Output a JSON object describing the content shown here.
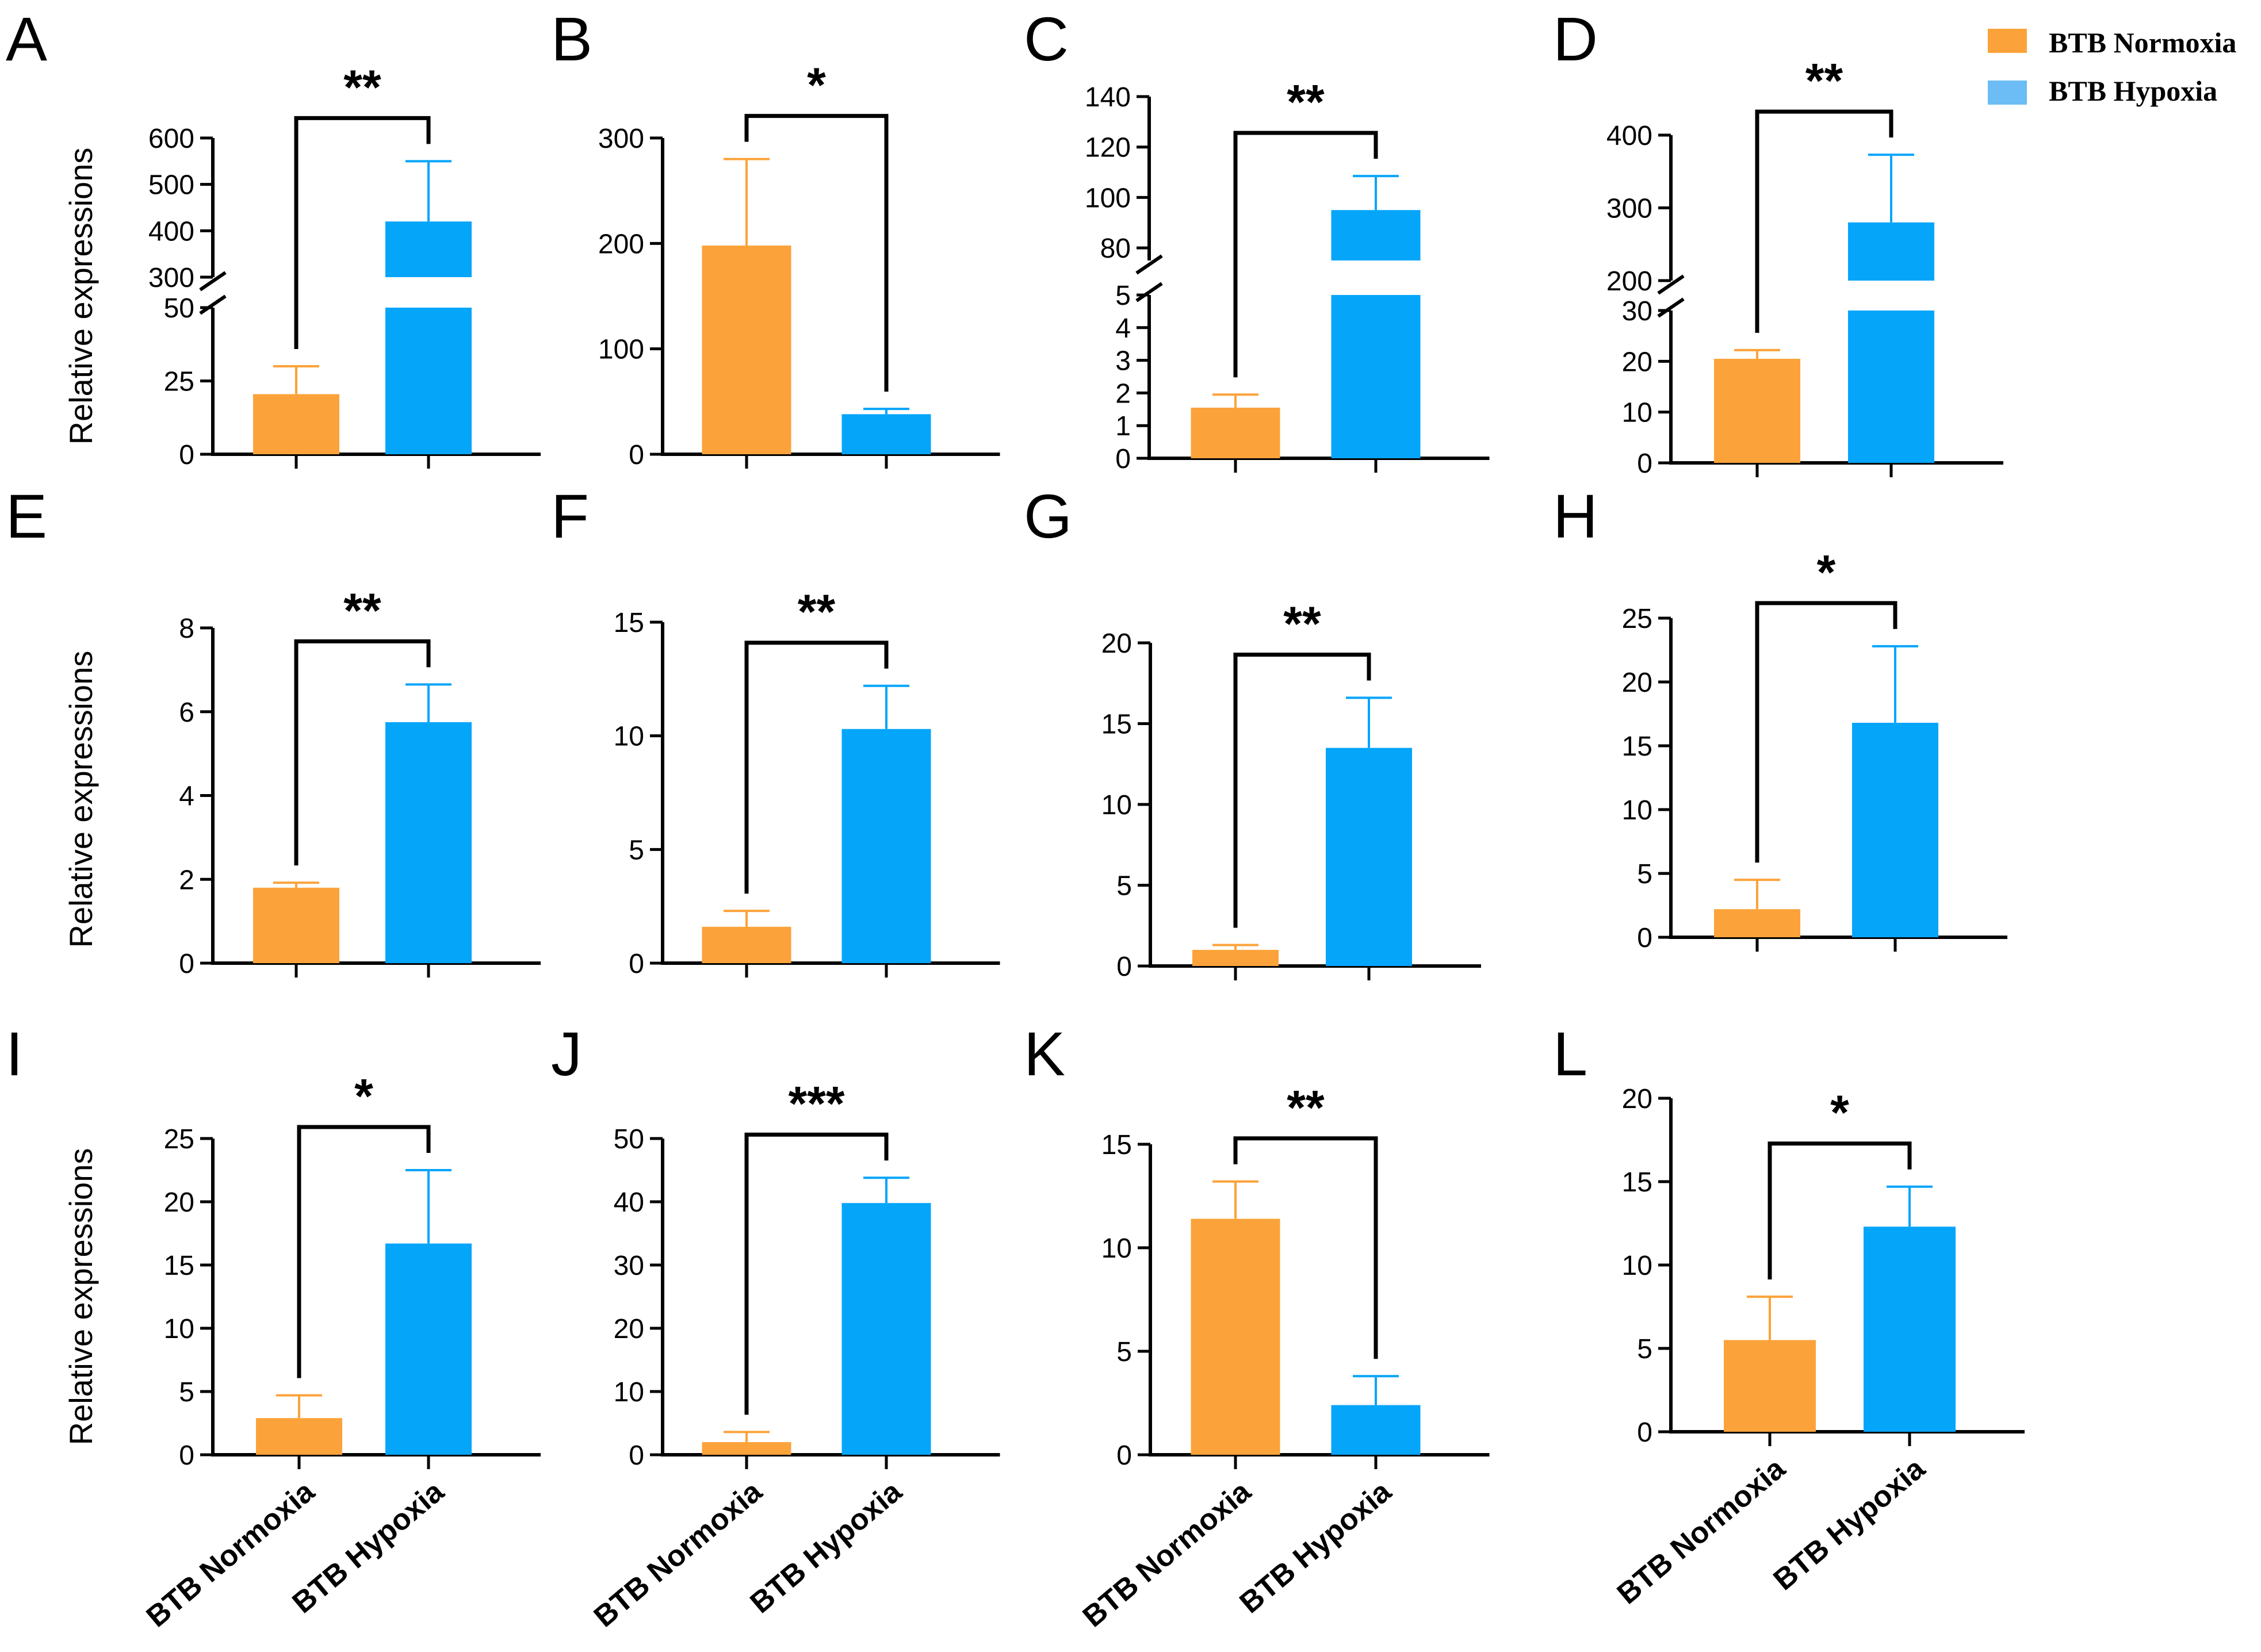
{
  "colors": {
    "normoxia": "#FBA33A",
    "hypoxia": "#05A5FA",
    "axis": "#000000"
  },
  "legend": {
    "items": [
      {
        "label": "BTB Normoxia",
        "color": "#FBA33A"
      },
      {
        "label": "BTB Hypoxia",
        "color": "#6CBDF6"
      }
    ]
  },
  "y_axis_label": "Relative expressions",
  "x_categories": [
    "BTB Normoxia",
    "BTB Hypoxia"
  ],
  "chart_data": [
    {
      "panel": "A",
      "type": "bar",
      "categories": [
        "BTB Normoxia",
        "BTB Hypoxia"
      ],
      "values": [
        20.5,
        420
      ],
      "errors": [
        30,
        550
      ],
      "significance": "**",
      "ylabel": "Relative expressions",
      "axis_break": {
        "lower": [
          0,
          50
        ],
        "upper": [
          300,
          600
        ]
      },
      "ticks_lower": [
        0,
        25,
        50
      ],
      "ticks_upper": [
        300,
        400,
        500,
        600
      ]
    },
    {
      "panel": "B",
      "type": "bar",
      "categories": [
        "BTB Normoxia",
        "BTB Hypoxia"
      ],
      "values": [
        198,
        38
      ],
      "errors": [
        280,
        43
      ],
      "significance": "*",
      "ylim": [
        0,
        300
      ],
      "ticks": [
        0,
        100,
        200,
        300
      ]
    },
    {
      "panel": "C",
      "type": "bar",
      "categories": [
        "BTB Normoxia",
        "BTB Hypoxia"
      ],
      "values": [
        1.55,
        95
      ],
      "errors": [
        1.95,
        108.5
      ],
      "significance": "**",
      "axis_break": {
        "lower": [
          0,
          5
        ],
        "upper": [
          75,
          140
        ]
      },
      "ticks_lower": [
        0,
        1,
        2,
        3,
        4,
        5
      ],
      "ticks_upper": [
        80,
        100,
        120,
        140
      ]
    },
    {
      "panel": "D",
      "type": "bar",
      "categories": [
        "BTB Normoxia",
        "BTB Hypoxia"
      ],
      "values": [
        20.5,
        280
      ],
      "errors": [
        22.2,
        373
      ],
      "significance": "**",
      "axis_break": {
        "lower": [
          0,
          30
        ],
        "upper": [
          200,
          400
        ]
      },
      "ticks_lower": [
        0,
        10,
        20,
        30
      ],
      "ticks_upper": [
        200,
        300,
        400
      ]
    },
    {
      "panel": "E",
      "type": "bar",
      "categories": [
        "BTB Normoxia",
        "BTB Hypoxia"
      ],
      "values": [
        1.8,
        5.75
      ],
      "errors": [
        1.92,
        6.65
      ],
      "significance": "**",
      "ylabel": "Relative expressions",
      "ylim": [
        0,
        8
      ],
      "ticks": [
        0,
        2,
        4,
        6,
        8
      ]
    },
    {
      "panel": "F",
      "type": "bar",
      "categories": [
        "BTB Normoxia",
        "BTB Hypoxia"
      ],
      "values": [
        1.6,
        10.3
      ],
      "errors": [
        2.3,
        12.2
      ],
      "significance": "**",
      "ylim": [
        0,
        15
      ],
      "ticks": [
        0,
        5,
        10,
        15
      ]
    },
    {
      "panel": "G",
      "type": "bar",
      "categories": [
        "BTB Normoxia",
        "BTB Hypoxia"
      ],
      "values": [
        1.0,
        13.5
      ],
      "errors": [
        1.3,
        16.6
      ],
      "significance": "**",
      "ylim": [
        0,
        20
      ],
      "ticks": [
        0,
        5,
        10,
        15,
        20
      ]
    },
    {
      "panel": "H",
      "type": "bar",
      "categories": [
        "BTB Normoxia",
        "BTB Hypoxia"
      ],
      "values": [
        2.2,
        16.8
      ],
      "errors": [
        4.5,
        22.8
      ],
      "significance": "*",
      "ylim": [
        0,
        25
      ],
      "ticks": [
        0,
        5,
        10,
        15,
        20,
        25
      ]
    },
    {
      "panel": "I",
      "type": "bar",
      "categories": [
        "BTB Normoxia",
        "BTB Hypoxia"
      ],
      "values": [
        2.9,
        16.7
      ],
      "errors": [
        4.7,
        22.5
      ],
      "significance": "*",
      "ylabel": "Relative expressions",
      "ylim": [
        0,
        25
      ],
      "ticks": [
        0,
        5,
        10,
        15,
        20,
        25
      ]
    },
    {
      "panel": "J",
      "type": "bar",
      "categories": [
        "BTB Normoxia",
        "BTB Hypoxia"
      ],
      "values": [
        2.0,
        39.8
      ],
      "errors": [
        3.6,
        43.8
      ],
      "significance": "***",
      "ylim": [
        0,
        50
      ],
      "ticks": [
        0,
        10,
        20,
        30,
        40,
        50
      ]
    },
    {
      "panel": "K",
      "type": "bar",
      "categories": [
        "BTB Normoxia",
        "BTB Hypoxia"
      ],
      "values": [
        11.4,
        2.4
      ],
      "errors": [
        13.2,
        3.8
      ],
      "significance": "**",
      "ylim": [
        0,
        15
      ],
      "ticks": [
        0,
        5,
        10,
        15
      ]
    },
    {
      "panel": "L",
      "type": "bar",
      "categories": [
        "BTB Normoxia",
        "BTB Hypoxia"
      ],
      "values": [
        5.5,
        12.3
      ],
      "errors": [
        8.1,
        14.7
      ],
      "significance": "*",
      "ylim": [
        0,
        20
      ],
      "ticks": [
        0,
        5,
        10,
        15,
        20
      ]
    }
  ]
}
